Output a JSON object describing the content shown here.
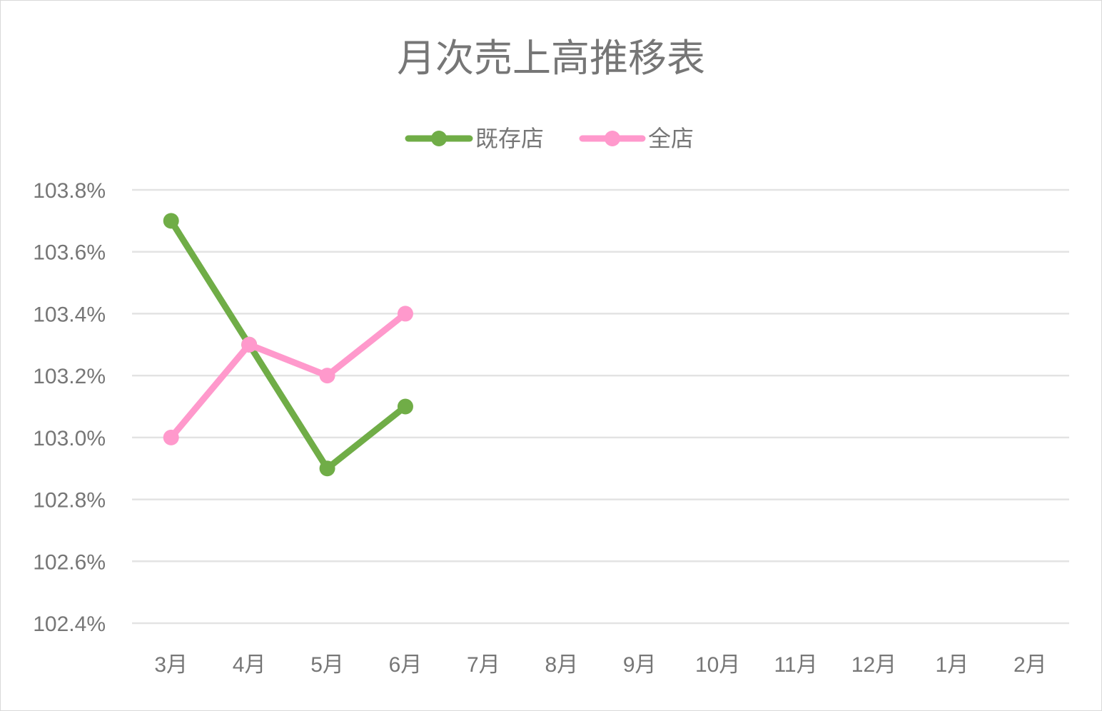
{
  "chart_data": {
    "type": "line",
    "title": "月次売上高推移表",
    "categories": [
      "3月",
      "4月",
      "5月",
      "6月",
      "7月",
      "8月",
      "9月",
      "10月",
      "11月",
      "12月",
      "1月",
      "2月"
    ],
    "series": [
      {
        "name": "既存店",
        "color": "#70ad47",
        "values": [
          103.7,
          103.3,
          102.9,
          103.1,
          null,
          null,
          null,
          null,
          null,
          null,
          null,
          null
        ]
      },
      {
        "name": "全店",
        "color": "#ff99cc",
        "values": [
          103.0,
          103.3,
          103.2,
          103.4,
          null,
          null,
          null,
          null,
          null,
          null,
          null,
          null
        ]
      }
    ],
    "ylim": [
      102.4,
      103.8
    ],
    "yticks": [
      103.8,
      103.6,
      103.4,
      103.2,
      103.0,
      102.8,
      102.6,
      102.4
    ],
    "ytick_labels": [
      "103.8%",
      "103.6%",
      "103.4%",
      "103.2%",
      "103.0%",
      "102.8%",
      "102.6%",
      "102.4%"
    ],
    "grid": true,
    "legend_position": "top-center",
    "xlabel": "",
    "ylabel": ""
  }
}
